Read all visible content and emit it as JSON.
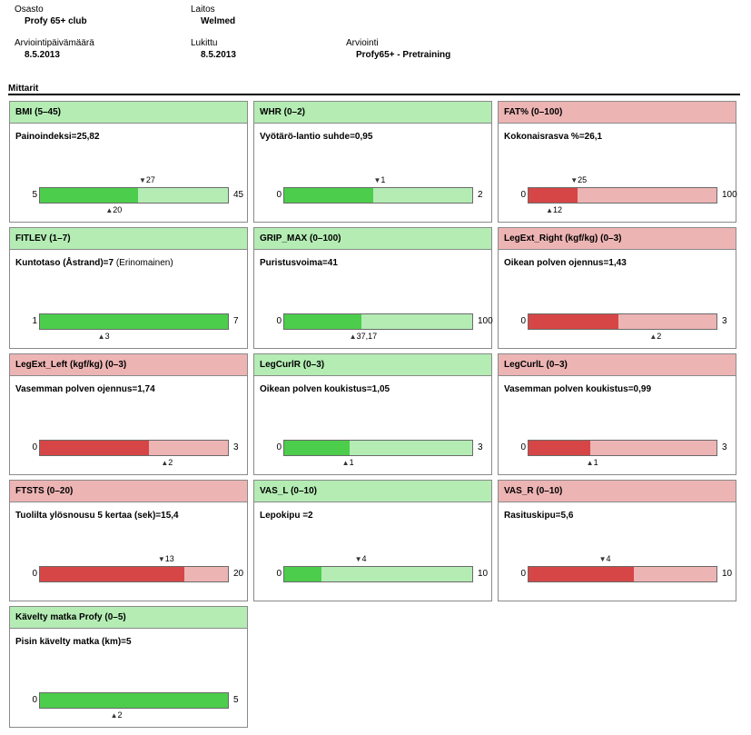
{
  "header": {
    "department": {
      "label": "Osasto",
      "value": "Profy 65+ club"
    },
    "facility": {
      "label": "Laitos",
      "value": "Welmed"
    },
    "assessment_date": {
      "label": "Arviointipäivämäärä",
      "value": "8.5.2013"
    },
    "locked": {
      "label": "Lukittu",
      "value": "8.5.2013"
    },
    "assessment": {
      "label": "Arviointi",
      "value": "Profy65+ - Pretraining"
    }
  },
  "section_title": "Mittarit",
  "colors": {
    "good_header": "#b4ecb4",
    "good_fill": "#4ccd4c",
    "bad_header": "#edb4b4",
    "bad_fill": "#d64646"
  },
  "meters": [
    {
      "title": "BMI (5–45)",
      "status": "good",
      "desc": "Painoindeksi=25,82",
      "desc_extra": "",
      "min": 5,
      "max": 45,
      "value": 25.82,
      "min_label": "5",
      "max_label": "45",
      "upper_marker": 27,
      "upper_marker_label": "27",
      "lower_marker": 20,
      "lower_marker_label": "20"
    },
    {
      "title": "WHR (0–2)",
      "status": "good",
      "desc": "Vyötärö-lantio suhde=0,95",
      "desc_extra": "",
      "min": 0,
      "max": 2,
      "value": 0.95,
      "min_label": "0",
      "max_label": "2",
      "upper_marker": 1,
      "upper_marker_label": "1",
      "lower_marker": null,
      "lower_marker_label": ""
    },
    {
      "title": "FAT% (0–100)",
      "status": "bad",
      "desc": "Kokonaisrasva %=26,1",
      "desc_extra": "",
      "min": 0,
      "max": 100,
      "value": 26.1,
      "min_label": "0",
      "max_label": "100",
      "upper_marker": 25,
      "upper_marker_label": "25",
      "lower_marker": 12,
      "lower_marker_label": "12"
    },
    {
      "title": "FITLEV (1–7)",
      "status": "good",
      "desc": "Kuntotaso (Åstrand)=7",
      "desc_extra": " (Erinomainen)",
      "min": 1,
      "max": 7,
      "value": 7,
      "min_label": "1",
      "max_label": "7",
      "upper_marker": null,
      "upper_marker_label": "",
      "lower_marker": 3,
      "lower_marker_label": "3"
    },
    {
      "title": "GRIP_MAX (0–100)",
      "status": "good",
      "desc": "Puristusvoima=41",
      "desc_extra": "",
      "min": 0,
      "max": 100,
      "value": 41,
      "min_label": "0",
      "max_label": "100",
      "upper_marker": null,
      "upper_marker_label": "",
      "lower_marker": 37.17,
      "lower_marker_label": "37,17"
    },
    {
      "title": "LegExt_Right (kgf/kg) (0–3)",
      "status": "bad",
      "desc": "Oikean polven ojennus=1,43",
      "desc_extra": "",
      "min": 0,
      "max": 3,
      "value": 1.43,
      "min_label": "0",
      "max_label": "3",
      "upper_marker": null,
      "upper_marker_label": "",
      "lower_marker": 2,
      "lower_marker_label": "2"
    },
    {
      "title": "LegExt_Left (kgf/kg) (0–3)",
      "status": "bad",
      "desc": "Vasemman polven ojennus=1,74",
      "desc_extra": "",
      "min": 0,
      "max": 3,
      "value": 1.74,
      "min_label": "0",
      "max_label": "3",
      "upper_marker": null,
      "upper_marker_label": "",
      "lower_marker": 2,
      "lower_marker_label": "2"
    },
    {
      "title": "LegCurlR (0–3)",
      "status": "good",
      "desc": "Oikean polven koukistus=1,05",
      "desc_extra": "",
      "min": 0,
      "max": 3,
      "value": 1.05,
      "min_label": "0",
      "max_label": "3",
      "upper_marker": null,
      "upper_marker_label": "",
      "lower_marker": 1,
      "lower_marker_label": "1"
    },
    {
      "title": "LegCurlL (0–3)",
      "status": "bad",
      "desc": "Vasemman polven koukistus=0,99",
      "desc_extra": "",
      "min": 0,
      "max": 3,
      "value": 0.99,
      "min_label": "0",
      "max_label": "3",
      "upper_marker": null,
      "upper_marker_label": "",
      "lower_marker": 1,
      "lower_marker_label": "1"
    },
    {
      "title": "FTSTS (0–20)",
      "status": "bad",
      "desc": "Tuolilta ylösnousu 5 kertaa (sek)=15,4",
      "desc_extra": "",
      "min": 0,
      "max": 20,
      "value": 15.4,
      "min_label": "0",
      "max_label": "20",
      "upper_marker": 13,
      "upper_marker_label": "13",
      "lower_marker": null,
      "lower_marker_label": ""
    },
    {
      "title": "VAS_L (0–10)",
      "status": "good",
      "desc": "Lepokipu =2",
      "desc_extra": "",
      "min": 0,
      "max": 10,
      "value": 2,
      "min_label": "0",
      "max_label": "10",
      "upper_marker": 4,
      "upper_marker_label": "4",
      "lower_marker": null,
      "lower_marker_label": ""
    },
    {
      "title": "VAS_R (0–10)",
      "status": "bad",
      "desc": "Rasituskipu=5,6",
      "desc_extra": "",
      "min": 0,
      "max": 10,
      "value": 5.6,
      "min_label": "0",
      "max_label": "10",
      "upper_marker": 4,
      "upper_marker_label": "4",
      "lower_marker": null,
      "lower_marker_label": ""
    },
    {
      "title": "Kävelty matka Profy (0–5)",
      "status": "good",
      "desc": "Pisin kävelty matka (km)=5",
      "desc_extra": "",
      "min": 0,
      "max": 5,
      "value": 5,
      "min_label": "0",
      "max_label": "5",
      "upper_marker": null,
      "upper_marker_label": "",
      "lower_marker": 2,
      "lower_marker_label": "2"
    }
  ]
}
